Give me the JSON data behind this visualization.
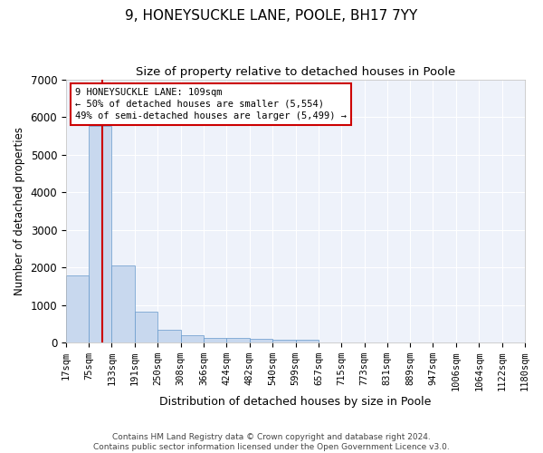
{
  "title": "9, HONEYSUCKLE LANE, POOLE, BH17 7YY",
  "subtitle": "Size of property relative to detached houses in Poole",
  "xlabel": "Distribution of detached houses by size in Poole",
  "ylabel": "Number of detached properties",
  "bin_labels": [
    "17sqm",
    "75sqm",
    "133sqm",
    "191sqm",
    "250sqm",
    "308sqm",
    "366sqm",
    "424sqm",
    "482sqm",
    "540sqm",
    "599sqm",
    "657sqm",
    "715sqm",
    "773sqm",
    "831sqm",
    "889sqm",
    "947sqm",
    "1006sqm",
    "1064sqm",
    "1122sqm",
    "1180sqm"
  ],
  "bin_edges": [
    17,
    75,
    133,
    191,
    250,
    308,
    366,
    424,
    482,
    540,
    599,
    657,
    715,
    773,
    831,
    889,
    947,
    1006,
    1064,
    1122,
    1180
  ],
  "bar_values": [
    1780,
    5780,
    2060,
    810,
    340,
    200,
    130,
    110,
    100,
    80,
    60,
    0,
    0,
    0,
    0,
    0,
    0,
    0,
    0,
    0
  ],
  "bar_color": "#c8d8ee",
  "bar_edge_color": "#6699cc",
  "property_line_x": 109,
  "annotation_text": "9 HONEYSUCKLE LANE: 109sqm\n← 50% of detached houses are smaller (5,554)\n49% of semi-detached houses are larger (5,499) →",
  "annotation_box_color": "#cc0000",
  "vline_color": "#cc0000",
  "ylim": [
    0,
    7000
  ],
  "xlim": [
    17,
    1180
  ],
  "footer_line1": "Contains HM Land Registry data © Crown copyright and database right 2024.",
  "footer_line2": "Contains public sector information licensed under the Open Government Licence v3.0.",
  "background_color": "#eef2fa",
  "grid_color": "#ffffff",
  "title_fontsize": 11,
  "subtitle_fontsize": 9.5,
  "ylabel_fontsize": 8.5,
  "xlabel_fontsize": 9,
  "tick_fontsize": 7.5,
  "annotation_fontsize": 7.5,
  "footer_fontsize": 6.5
}
